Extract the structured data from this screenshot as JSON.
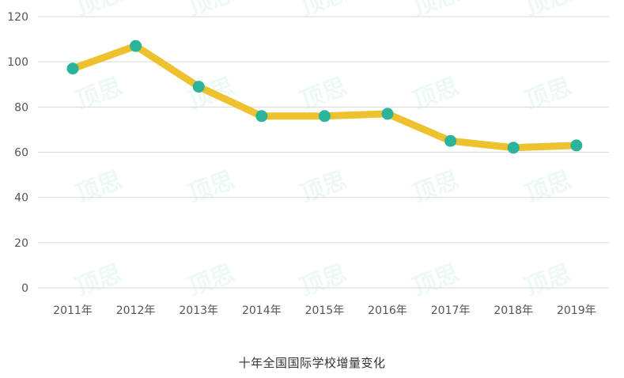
{
  "caption": "十年全国国际学校增量变化",
  "watermark_text": "顶思",
  "colors": {
    "line": "#EDC22E",
    "marker": "#2BB39C",
    "grid": "#D9D9D9",
    "tick_label": "#555555"
  },
  "chart_data": {
    "type": "line",
    "title": "",
    "xlabel": "",
    "ylabel": "",
    "categories": [
      "2011年",
      "2012年",
      "2013年",
      "2014年",
      "2015年",
      "2016年",
      "2017年",
      "2018年",
      "2019年"
    ],
    "series": [
      {
        "values": [
          97,
          107,
          89,
          76,
          76,
          77,
          65,
          62,
          63
        ]
      }
    ],
    "ylim": [
      0,
      120
    ],
    "yticks": [
      0,
      20,
      40,
      60,
      80,
      100,
      120
    ],
    "grid": true,
    "legend": "none"
  }
}
